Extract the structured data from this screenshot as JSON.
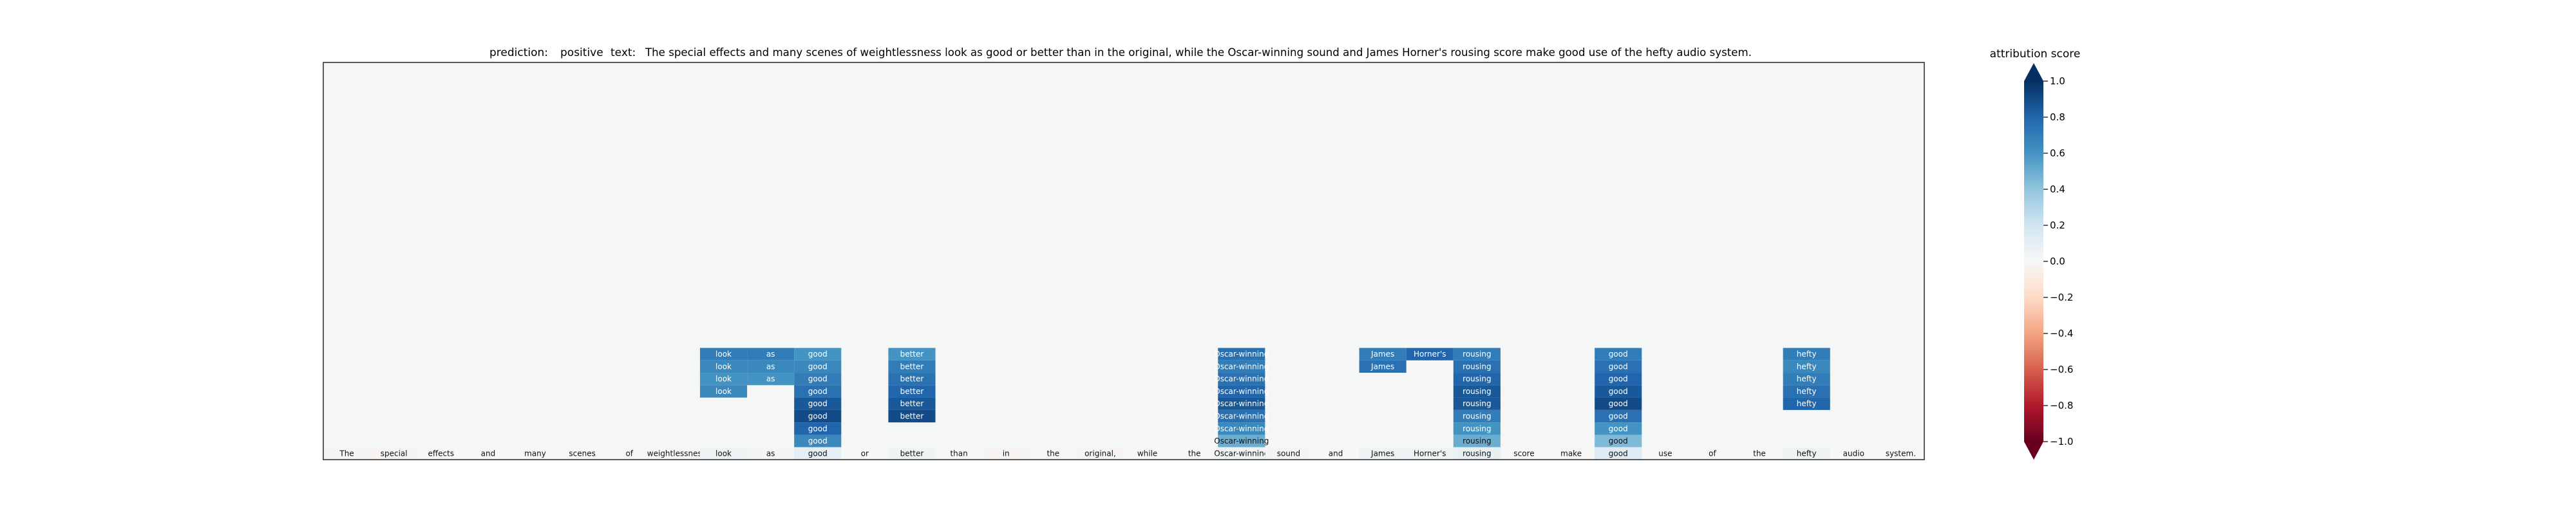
{
  "chart_data": {
    "type": "heatmap",
    "title_prediction_label": "prediction:",
    "title_prediction_value": "positive",
    "title_text_label": "text:",
    "title_text_value": "The special effects and many scenes of weightlessness look as good or better than in the original, while the Oscar-winning sound and James Horner's rousing score make good use of the hefty audio system.",
    "tokens": [
      "The",
      "special",
      "effects",
      "and",
      "many",
      "scenes",
      "of",
      "weightlessness",
      "look",
      "as",
      "good",
      "or",
      "better",
      "than",
      "in",
      "the",
      "original,",
      "while",
      "the",
      "Oscar-winning",
      "sound",
      "and",
      "James",
      "Horner's",
      "rousing",
      "score",
      "make",
      "good",
      "use",
      "of",
      "the",
      "hefty",
      "audio",
      "system."
    ],
    "n_rows": 32,
    "bottom_row_scores": [
      0.02,
      -0.02,
      0.0,
      0.01,
      0.0,
      0.0,
      0.01,
      0.0,
      0.05,
      0.02,
      0.1,
      0.0,
      0.05,
      0.0,
      -0.02,
      -0.01,
      -0.02,
      0.0,
      0.01,
      0.05,
      0.02,
      0.0,
      0.05,
      0.05,
      0.08,
      0.0,
      -0.01,
      0.12,
      0.0,
      0.0,
      0.0,
      0.05,
      0.0,
      0.0
    ],
    "cells": [
      {
        "token": 8,
        "scores": [
          0.7,
          0.65,
          0.6,
          0.65
        ]
      },
      {
        "token": 9,
        "scores": [
          0.7,
          0.65,
          0.6
        ]
      },
      {
        "token": 10,
        "scores": [
          0.6,
          0.65,
          0.7,
          0.75,
          0.85,
          0.9,
          0.8,
          0.65
        ]
      },
      {
        "token": 12,
        "scores": [
          0.6,
          0.7,
          0.75,
          0.8,
          0.85,
          0.9
        ]
      },
      {
        "token": 19,
        "scores": [
          0.75,
          0.7,
          0.75,
          0.8,
          0.85,
          0.75,
          0.65,
          0.5
        ]
      },
      {
        "token": 22,
        "scores": [
          0.7,
          0.75
        ]
      },
      {
        "token": 23,
        "scores": [
          0.8
        ]
      },
      {
        "token": 24,
        "scores": [
          0.7,
          0.75,
          0.8,
          0.85,
          0.85,
          0.7,
          0.6,
          0.5,
          0.35
        ]
      },
      {
        "token": 27,
        "scores": [
          0.7,
          0.75,
          0.8,
          0.85,
          0.9,
          0.75,
          0.6,
          0.45,
          0.25
        ]
      },
      {
        "token": 31,
        "scores": [
          0.7,
          0.65,
          0.7,
          0.75,
          0.8
        ]
      }
    ],
    "colorbar_label": "attribution score",
    "colorbar_range": [
      -1.0,
      1.0
    ],
    "colorbar_ticks": [
      "1.0",
      "0.8",
      "0.6",
      "0.4",
      "0.2",
      "0.0",
      "−0.2",
      "−0.4",
      "−0.6",
      "−0.8",
      "−1.0"
    ],
    "colorbar_tick_values": [
      1.0,
      0.8,
      0.6,
      0.4,
      0.2,
      0.0,
      -0.2,
      -0.4,
      -0.6,
      -0.8,
      -1.0
    ],
    "colormap": [
      "#67001f",
      "#b2182b",
      "#d6604d",
      "#f4a582",
      "#fddbc7",
      "#f7f7f7",
      "#d1e5f0",
      "#92c5de",
      "#4393c3",
      "#2166ac",
      "#053061"
    ],
    "background_color": "#f5f7f6"
  }
}
